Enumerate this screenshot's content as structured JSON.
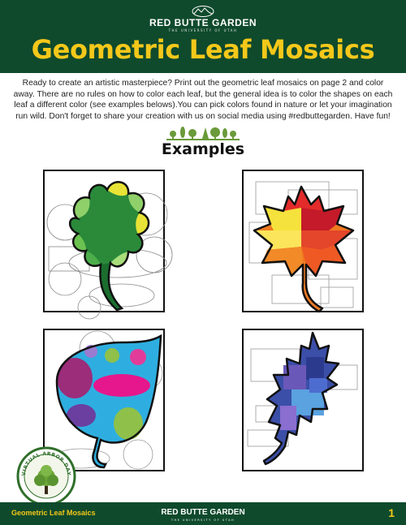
{
  "header": {
    "brand_name": "RED BUTTE GARDEN",
    "brand_sub": "THE UNIVERSITY OF UTAH",
    "title": "Geometric Leaf Mosaics"
  },
  "intro": "Ready to create an artistic masterpiece? Print out the geometric leaf mosaics on page 2 and color away. There are no rules on how to color each leaf, but the general idea is to color the shapes on each leaf a different color (see examples belows).You can pick colors found in nature or let your imagination run wild. Don't forget to share your creation with us on social media using #redbuttegarden. Have fun!",
  "examples_heading": "Examples",
  "badge": {
    "text": "VIRTUAL ARBOR DAY",
    "icon": "tree-icon"
  },
  "footer": {
    "left_label": "Geometric Leaf Mosaics",
    "brand_name": "RED BUTTE GARDEN",
    "brand_sub": "THE UNIVERSITY OF UTAH",
    "page_number": "1"
  },
  "colors": {
    "brand_green": "#0f4a2c",
    "title_yellow": "#f4c81a"
  }
}
